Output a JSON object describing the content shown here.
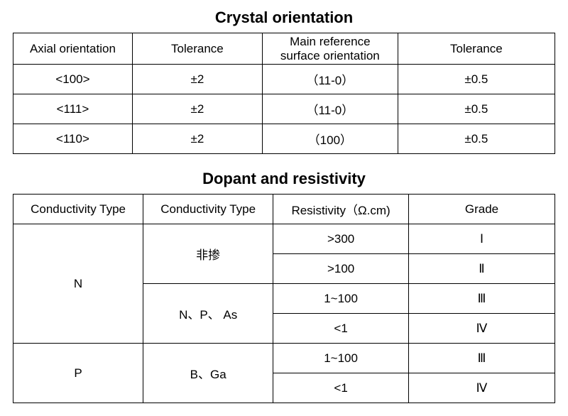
{
  "table1": {
    "title": "Crystal orientation",
    "columns": [
      "Axial orientation",
      "Tolerance",
      "Main reference\nsurface orientation",
      "Tolerance"
    ],
    "rows": [
      [
        "<100>",
        "±2",
        "（11-0）",
        "±0.5"
      ],
      [
        "<111>",
        "±2",
        "（11-0）",
        "±0.5"
      ],
      [
        "<110>",
        "±2",
        "（100）",
        "±0.5"
      ]
    ],
    "col_widths": [
      "22%",
      "24%",
      "25%",
      "29%"
    ]
  },
  "table2": {
    "title": "Dopant and resistivity",
    "columns": [
      "Conductivity Type",
      "Conductivity Type",
      "Resistivity（Ω.cm)",
      "Grade"
    ],
    "col_widths": [
      "24%",
      "24%",
      "25%",
      "27%"
    ],
    "group_n_label": "N",
    "n_sub1_label": "非掺",
    "n_sub2_label": "N、P、 As",
    "group_p_label": "P",
    "p_sub_label": "B、Ga",
    "rows": {
      "r1": {
        "resistivity": ">300",
        "grade": "Ⅰ"
      },
      "r2": {
        "resistivity": ">100",
        "grade": "Ⅱ"
      },
      "r3": {
        "resistivity": "1~100",
        "grade": "Ⅲ"
      },
      "r4": {
        "resistivity": "<1",
        "grade": "Ⅳ"
      },
      "r5": {
        "resistivity": "1~100",
        "grade": "Ⅲ"
      },
      "r6": {
        "resistivity": "<1",
        "grade": "Ⅳ"
      }
    }
  },
  "style": {
    "border_color": "#000000",
    "background_color": "#ffffff",
    "text_color": "#000000",
    "title_fontsize": 22,
    "cell_fontsize": 17
  }
}
